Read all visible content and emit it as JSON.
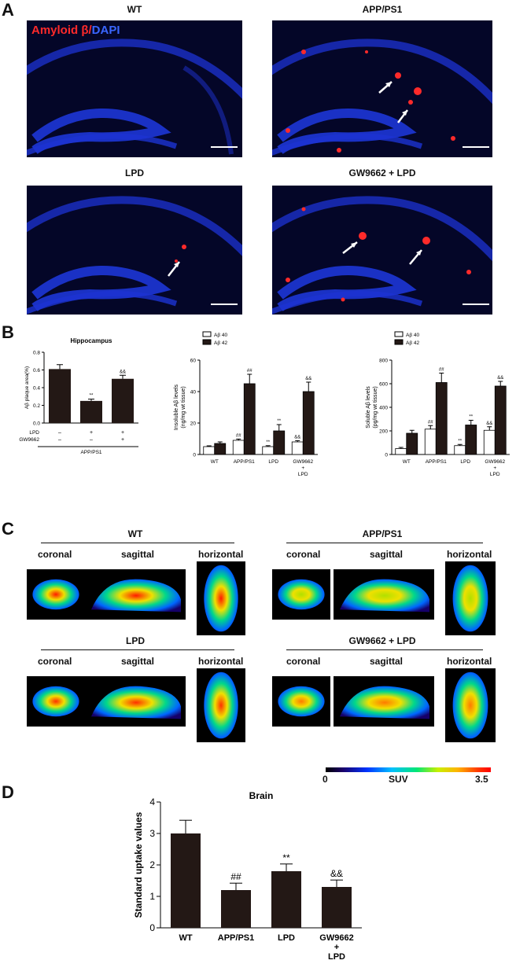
{
  "panels": {
    "a": "A",
    "b": "B",
    "c": "C",
    "d": "D"
  },
  "micro_titles": [
    "WT",
    "APP/PS1",
    "LPD",
    "GW9662 + LPD"
  ],
  "micro_legend": {
    "part1": "Amyloid β",
    "sep": "/",
    "part2": "DAPI"
  },
  "pet": {
    "groups": [
      "WT",
      "APP/PS1",
      "LPD",
      "GW9662 + LPD"
    ],
    "views": [
      "coronal",
      "sagittal",
      "horizontal"
    ],
    "scale": {
      "min": "0",
      "label": "SUV",
      "max": "3.5"
    }
  },
  "colors": {
    "bar": "#231815",
    "red": "#ff1a1a",
    "blue": "#2e5bff"
  },
  "chart_data": [
    {
      "type": "bar",
      "title": "Hippocampus",
      "ylabel": "Aβ plaque area(%)",
      "ylim": [
        0,
        0.8
      ],
      "yticks": [
        "0.0",
        "0.2",
        "0.4",
        "0.6",
        "0.8"
      ],
      "categories": [
        "",
        "",
        ""
      ],
      "values": [
        0.61,
        0.25,
        0.5
      ],
      "errors": [
        0.05,
        0.02,
        0.04
      ],
      "sig": [
        "",
        "**",
        "&&"
      ],
      "treatments": {
        "rows": [
          {
            "label": "LPD",
            "marks": [
              "–",
              "+",
              "+"
            ]
          },
          {
            "label": "GW9662",
            "marks": [
              "–",
              "–",
              "+"
            ]
          }
        ],
        "group": "APP/PS1"
      }
    },
    {
      "type": "bar",
      "ylabel": "Insoluble Aβ levels (ng/mg wt tissue)",
      "ylim": [
        0,
        60
      ],
      "yticks": [
        "0",
        "20",
        "40",
        "60"
      ],
      "categories": [
        "WT",
        "APP/PS1",
        "LPD",
        "GW9662 + LPD"
      ],
      "legend": [
        "Aβ 40",
        "Aβ 42"
      ],
      "series": [
        {
          "name": "Aβ 40",
          "values": [
            5,
            9,
            5,
            8
          ],
          "errors": [
            0.5,
            0.8,
            0.6,
            0.8
          ],
          "sig": [
            "",
            "##",
            "**",
            "&&"
          ]
        },
        {
          "name": "Aβ 42",
          "values": [
            7,
            45,
            15,
            40
          ],
          "errors": [
            1,
            6,
            4,
            6
          ],
          "sig": [
            "",
            "##",
            "**",
            "&&"
          ]
        }
      ]
    },
    {
      "type": "bar",
      "ylabel": "Soluble Aβ levels (pg/mg wt tissue)",
      "ylim": [
        0,
        800
      ],
      "yticks": [
        "0",
        "200",
        "400",
        "600",
        "800"
      ],
      "categories": [
        "WT",
        "APP/PS1",
        "LPD",
        "GW9662 + LPD"
      ],
      "legend": [
        "Aβ 40",
        "Aβ 42"
      ],
      "series": [
        {
          "name": "Aβ 40",
          "values": [
            50,
            215,
            75,
            205
          ],
          "errors": [
            10,
            30,
            10,
            30
          ],
          "sig": [
            "",
            "##",
            "**",
            "&&"
          ]
        },
        {
          "name": "Aβ 42",
          "values": [
            180,
            610,
            250,
            580
          ],
          "errors": [
            25,
            80,
            40,
            40
          ],
          "sig": [
            "",
            "##",
            "**",
            "&&"
          ]
        }
      ]
    },
    {
      "type": "bar",
      "title": "Brain",
      "ylabel": "Standard uptake values",
      "ylim": [
        0,
        4
      ],
      "yticks": [
        "0",
        "1",
        "2",
        "3",
        "4"
      ],
      "categories": [
        "WT",
        "APP/PS1",
        "LPD",
        "GW9662 + LPD"
      ],
      "values": [
        3.0,
        1.2,
        1.8,
        1.3
      ],
      "errors": [
        0.42,
        0.22,
        0.23,
        0.22
      ],
      "sig": [
        "",
        "##",
        "**",
        "&&"
      ]
    }
  ]
}
